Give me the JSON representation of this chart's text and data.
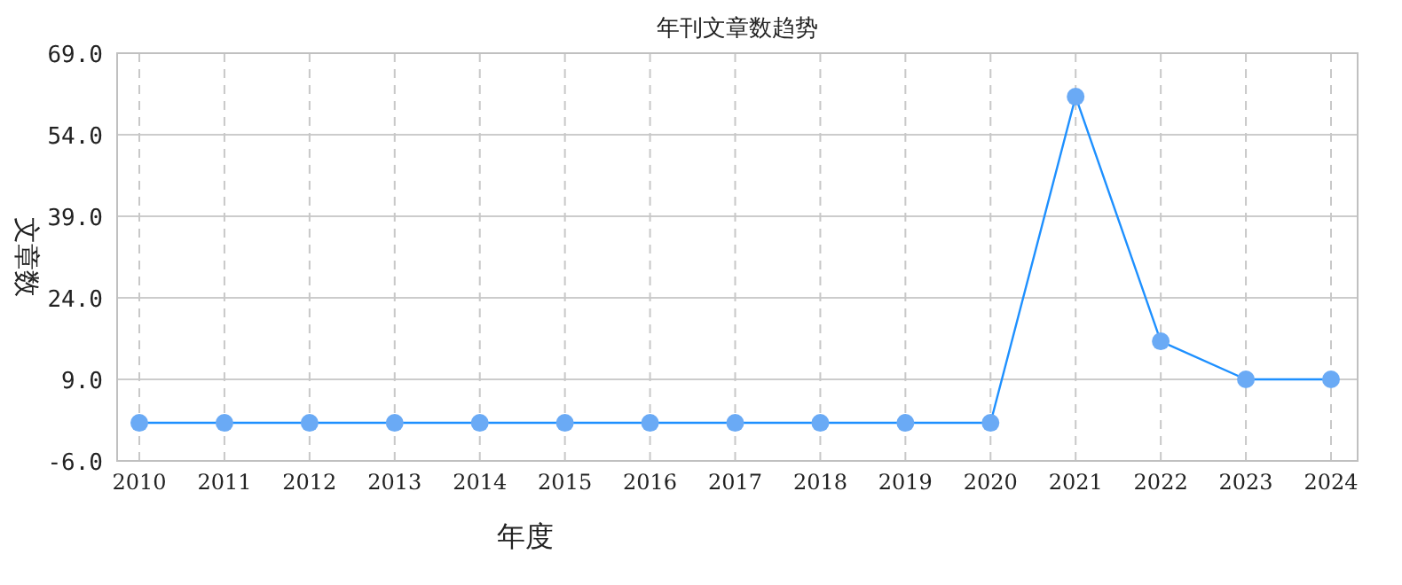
{
  "chart_data": {
    "type": "line",
    "title": "年刊文章数趋势",
    "xlabel": "年度",
    "ylabel": "文章数",
    "categories": [
      "2010",
      "2011",
      "2012",
      "2013",
      "2014",
      "2015",
      "2016",
      "2017",
      "2018",
      "2019",
      "2020",
      "2021",
      "2022",
      "2023",
      "2024"
    ],
    "series": [
      {
        "color": "#1e90ff",
        "values": [
          1,
          1,
          1,
          1,
          1,
          1,
          1,
          1,
          1,
          1,
          1,
          61,
          16,
          9,
          9
        ]
      }
    ],
    "ylim": [
      -6,
      69
    ],
    "yticks": [
      {
        "value": -6,
        "label": "-6.0"
      },
      {
        "value": 9,
        "label": "9.0"
      },
      {
        "value": 24,
        "label": "24.0"
      },
      {
        "value": 39,
        "label": "39.0"
      },
      {
        "value": 54,
        "label": "54.0"
      },
      {
        "value": 69,
        "label": "69.0"
      }
    ],
    "grid": true,
    "marker": "circle",
    "line_style": "solid"
  }
}
